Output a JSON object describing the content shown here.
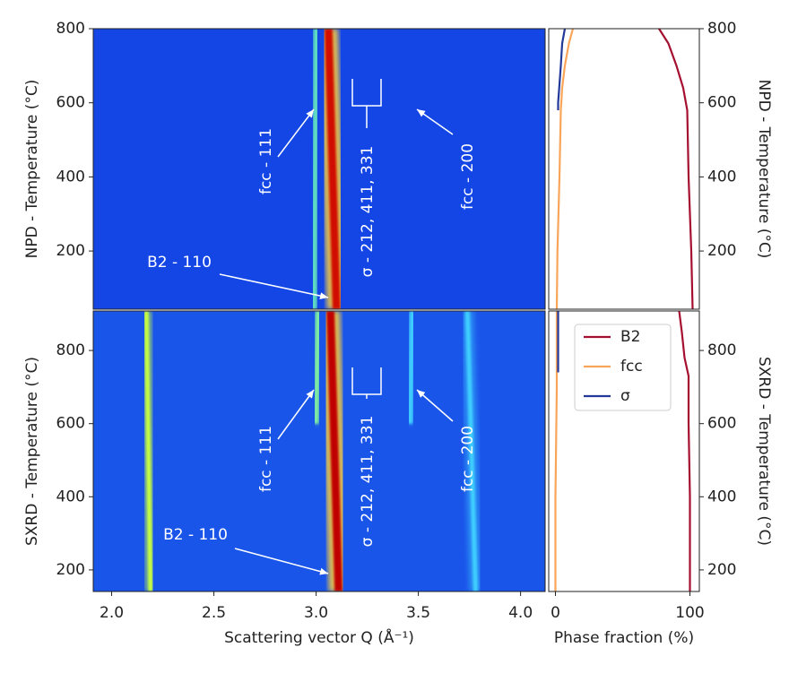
{
  "chart_data": [
    {
      "type": "heatmap",
      "ylabel": "NPD - Temperature (°C)",
      "background": "#1446e6",
      "xlim": [
        1.91,
        4.12
      ],
      "ylim": [
        43,
        800
      ],
      "yticks": [
        200,
        400,
        600,
        800
      ],
      "series": [
        {
          "color": "#2aa8ff",
          "x": [
            2.16,
            2.16
          ],
          "values": [
            43,
            800
          ]
        },
        {
          "color": "#60e0c0",
          "x": [
            2.99,
            3.0
          ],
          "values": [
            43,
            800
          ]
        },
        {
          "color": "#2a78ff",
          "x": [
            3.2,
            3.2
          ],
          "values": [
            43,
            800
          ]
        },
        {
          "color": "#2a78ff",
          "x": [
            3.28,
            3.28
          ],
          "values": [
            43,
            800
          ]
        },
        {
          "color": "#40c8ff",
          "x": [
            3.46,
            3.46
          ],
          "values": [
            43,
            800
          ]
        },
        {
          "color": "#d01000",
          "x": [
            3.1,
            3.06
          ],
          "values": [
            43,
            800
          ]
        }
      ],
      "annotations": [
        "fcc - 111",
        "σ - 212, 411, 331",
        "fcc - 200",
        "B2 - 110"
      ]
    },
    {
      "type": "heatmap",
      "ylabel": "SXRD - Temperature (°C)",
      "xlabel": "Scattering vector Q (Å⁻¹)",
      "background": "#1a55ea",
      "xlim": [
        1.91,
        4.12
      ],
      "ylim": [
        141,
        908
      ],
      "yticks": [
        200,
        400,
        600,
        800
      ],
      "xticks": [
        {
          "value": 2,
          "label": "2.0"
        },
        2.5,
        {
          "value": 3,
          "label": "3.0"
        },
        3.5,
        {
          "value": 4,
          "label": "4.0"
        }
      ],
      "series": [
        {
          "color": "#c8ff40",
          "x": [
            2.19,
            2.17
          ],
          "values": [
            141,
            908
          ]
        },
        {
          "color": "#80f0a0",
          "x": [
            3.0,
            3.01
          ],
          "values": [
            600,
            908
          ]
        },
        {
          "color": "#2a80ff",
          "x": [
            3.22,
            3.22
          ],
          "values": [
            141,
            908
          ]
        },
        {
          "color": "#40d0ff",
          "x": [
            3.46,
            3.47
          ],
          "values": [
            600,
            908
          ]
        },
        {
          "color": "#40d0ff",
          "x": [
            3.78,
            3.74
          ],
          "values": [
            141,
            908
          ]
        },
        {
          "color": "#c00000",
          "x": [
            3.11,
            3.07
          ],
          "values": [
            141,
            908
          ]
        }
      ],
      "annotations": [
        "fcc - 111",
        "σ - 212, 411, 331",
        "fcc - 200",
        "B2 - 110"
      ]
    },
    {
      "type": "line",
      "ylabel": "NPD - Temperature (°C)",
      "xlim": [
        -5,
        107
      ],
      "ylim": [
        43,
        800
      ],
      "yticks": [
        200,
        400,
        600,
        800
      ],
      "series": [
        {
          "color": "#a50f30",
          "x": [
            77,
            84,
            90,
            95,
            98,
            99,
            101,
            102
          ],
          "values": [
            800,
            760,
            700,
            640,
            580,
            400,
            200,
            43
          ]
        },
        {
          "color": "#f8a55a",
          "x": [
            13,
            10,
            7,
            5,
            4,
            3,
            1.5,
            1
          ],
          "values": [
            800,
            760,
            700,
            640,
            580,
            400,
            200,
            43
          ]
        },
        {
          "color": "#23399a",
          "x": [
            7,
            5,
            4,
            3,
            2,
            2
          ],
          "values": [
            800,
            760,
            700,
            650,
            600,
            580
          ]
        }
      ]
    },
    {
      "type": "line",
      "ylabel": "SXRD - Temperature (°C)",
      "xlabel": "Phase fraction (%)",
      "xlim": [
        -5,
        107
      ],
      "xticks": [
        0,
        100
      ],
      "ylim": [
        141,
        908
      ],
      "yticks": [
        200,
        400,
        600,
        800
      ],
      "legend": "upper left",
      "series": [
        {
          "name": "B2",
          "color": "#a50f30",
          "x": [
            92,
            94,
            96,
            99,
            99,
            100,
            100
          ],
          "values": [
            908,
            850,
            780,
            730,
            600,
            400,
            141
          ]
        },
        {
          "name": "fcc",
          "color": "#f8a55a",
          "x": [
            1,
            1,
            0,
            0
          ],
          "values": [
            908,
            700,
            400,
            141
          ]
        },
        {
          "name": "σ",
          "color": "#23399a",
          "x": [
            2,
            2,
            2
          ],
          "values": [
            908,
            800,
            740
          ]
        }
      ]
    }
  ]
}
